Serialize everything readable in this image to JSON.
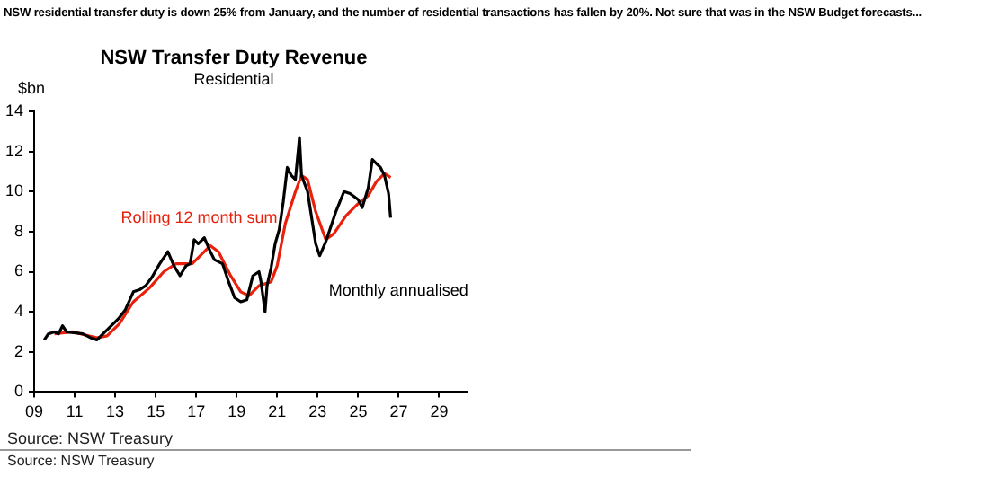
{
  "chart_data": {
    "type": "line",
    "title": "NSW Transfer Duty Revenue",
    "subtitle": "Residential",
    "ylabel": "$bn",
    "annotations": [
      "NSW residential transfer duty is down 25% from January, and the number of residential transactions has fallen by 20%. Not sure that was in the NSW Budget forecasts...",
      "Source: NSW Treasury",
      "Source: NSW Treasury"
    ],
    "xlim": [
      2009,
      2030.4
    ],
    "xticks": [
      {
        "value": 2009,
        "label": "09"
      },
      {
        "value": 2011,
        "label": "11"
      },
      {
        "value": 2013,
        "label": "13"
      },
      {
        "value": 2015,
        "label": "15"
      },
      {
        "value": 2017,
        "label": "17"
      },
      {
        "value": 2019,
        "label": "19"
      },
      {
        "value": 2021,
        "label": "21"
      },
      {
        "value": 2023,
        "label": "23"
      },
      {
        "value": 2025,
        "label": "25"
      },
      {
        "value": 2027,
        "label": "27"
      },
      {
        "value": 2029,
        "label": "29"
      }
    ],
    "ylim": [
      0,
      14
    ],
    "yticks": [
      0,
      2,
      4,
      6,
      8,
      10,
      12,
      14
    ],
    "series": [
      {
        "name": "Monthly annualised",
        "color": "#000000",
        "x": [
          2009.5,
          2009.7,
          2010.0,
          2010.2,
          2010.4,
          2010.6,
          2011.4,
          2011.8,
          2012.1,
          2012.4,
          2012.9,
          2013.2,
          2013.5,
          2013.9,
          2014.2,
          2014.5,
          2014.8,
          2015.2,
          2015.6,
          2015.9,
          2016.2,
          2016.5,
          2016.7,
          2016.9,
          2017.1,
          2017.4,
          2017.7,
          2017.9,
          2018.3,
          2018.6,
          2018.9,
          2019.2,
          2019.5,
          2019.8,
          2020.1,
          2020.2,
          2020.4,
          2020.5,
          2020.7,
          2020.9,
          2021.1,
          2021.3,
          2021.5,
          2021.7,
          2021.9,
          2022.1,
          2022.2,
          2022.5,
          2022.7,
          2022.9,
          2023.1,
          2023.4,
          2023.7,
          2023.9,
          2024.1,
          2024.3,
          2024.6,
          2025.0,
          2025.2,
          2025.5,
          2025.7,
          2025.9,
          2026.1,
          2026.3,
          2026.5,
          2026.6
        ],
        "values": [
          2.6,
          2.9,
          3.0,
          2.9,
          3.3,
          3.0,
          2.9,
          2.7,
          2.6,
          2.9,
          3.4,
          3.7,
          4.1,
          5.0,
          5.1,
          5.3,
          5.7,
          6.4,
          7.0,
          6.3,
          5.8,
          6.3,
          6.4,
          7.6,
          7.4,
          7.7,
          7.0,
          6.6,
          6.4,
          5.5,
          4.7,
          4.5,
          4.6,
          5.8,
          6.0,
          5.5,
          4.0,
          5.3,
          6.2,
          7.4,
          8.1,
          9.5,
          11.2,
          10.8,
          10.6,
          12.7,
          10.8,
          10.0,
          8.7,
          7.4,
          6.8,
          7.5,
          8.4,
          9.0,
          9.5,
          10.0,
          9.9,
          9.6,
          9.2,
          10.2,
          11.6,
          11.4,
          11.2,
          10.8,
          9.9,
          8.7
        ]
      },
      {
        "name": "Rolling 12 month sum",
        "color": "#e8200c",
        "x": [
          2010.0,
          2010.9,
          2012.1,
          2012.6,
          2013.2,
          2013.9,
          2014.7,
          2015.4,
          2016.0,
          2016.8,
          2017.4,
          2017.7,
          2018.1,
          2018.7,
          2019.2,
          2019.6,
          2020.1,
          2020.7,
          2021.0,
          2021.4,
          2021.9,
          2022.2,
          2022.5,
          2022.9,
          2023.4,
          2023.8,
          2024.4,
          2025.0,
          2025.5,
          2025.9,
          2026.3,
          2026.6
        ],
        "values": [
          2.9,
          3.0,
          2.7,
          2.8,
          3.4,
          4.5,
          5.2,
          6.0,
          6.4,
          6.4,
          7.0,
          7.3,
          7.0,
          5.8,
          5.0,
          4.8,
          5.3,
          5.5,
          6.3,
          8.4,
          10.0,
          10.8,
          10.6,
          9.0,
          7.6,
          7.9,
          8.8,
          9.4,
          9.8,
          10.5,
          10.9,
          10.7
        ]
      }
    ]
  }
}
